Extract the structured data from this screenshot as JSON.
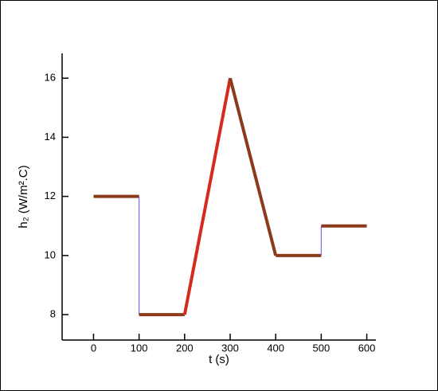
{
  "chart_data": {
    "type": "line",
    "x": [
      0,
      100,
      100,
      200,
      300,
      400,
      500,
      500,
      600
    ],
    "series": [
      {
        "name": "h2",
        "color": "#8b3a1a",
        "values": [
          12,
          12,
          8,
          8,
          16,
          10,
          10,
          11,
          11
        ]
      }
    ],
    "ramp_color": "#d42b1e",
    "jump_color": "#7b68ee",
    "xlim": [
      -69,
      620
    ],
    "ylim": [
      7.14,
      16.84
    ],
    "xticks": [
      0,
      100,
      200,
      300,
      400,
      500,
      600
    ],
    "yticks": [
      8,
      10,
      12,
      14,
      16
    ],
    "xlabel": "t (s)",
    "ylabel": "h₂ (W/m².C)"
  }
}
